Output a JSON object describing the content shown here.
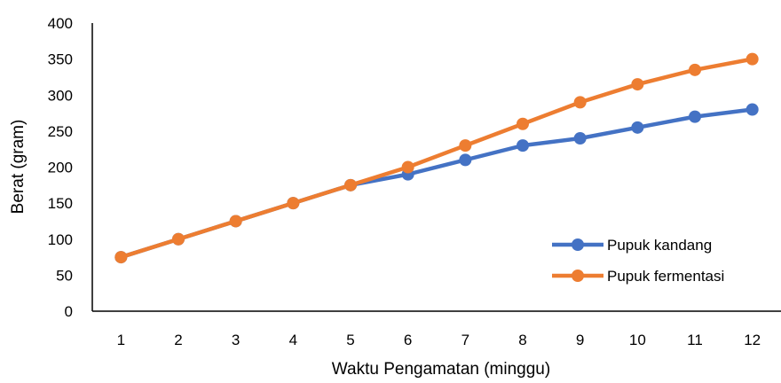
{
  "chart_data": {
    "type": "line",
    "title": "",
    "xlabel": "Waktu Pengamatan (minggu)",
    "ylabel": "Berat (gram)",
    "categories": [
      "1",
      "2",
      "3",
      "4",
      "5",
      "6",
      "7",
      "8",
      "9",
      "10",
      "11",
      "12"
    ],
    "ylim": [
      0,
      400
    ],
    "yticks": [
      0,
      50,
      100,
      150,
      200,
      250,
      300,
      350,
      400
    ],
    "grid": false,
    "legend_position": "right",
    "series": [
      {
        "name": "Pupuk kandang",
        "color": "#4472C4",
        "values": [
          75,
          100,
          125,
          150,
          175,
          190,
          210,
          230,
          240,
          255,
          270,
          280
        ]
      },
      {
        "name": "Pupuk fermentasi",
        "color": "#ED7D31",
        "values": [
          75,
          100,
          125,
          150,
          175,
          200,
          230,
          260,
          290,
          315,
          335,
          350
        ]
      }
    ]
  }
}
